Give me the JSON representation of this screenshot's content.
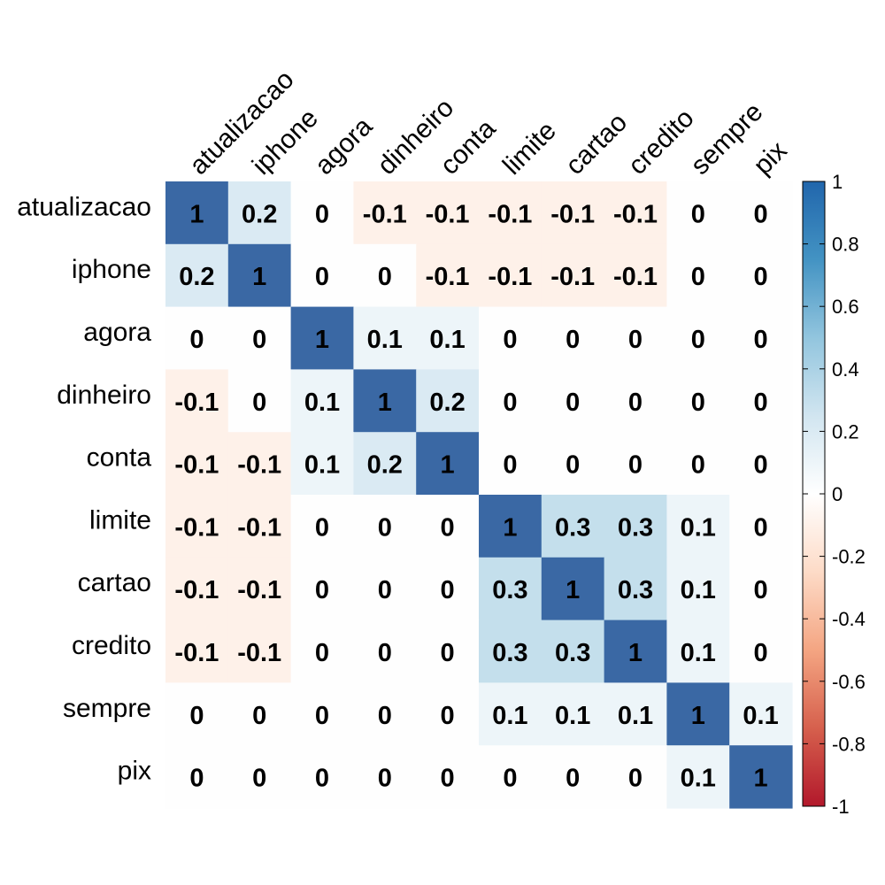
{
  "chart_data": {
    "type": "heatmap",
    "title": "",
    "xlabel": "",
    "ylabel": "",
    "variables": [
      "atualizacao",
      "iphone",
      "agora",
      "dinheiro",
      "conta",
      "limite",
      "cartao",
      "credito",
      "sempre",
      "pix"
    ],
    "matrix": [
      [
        1,
        0.2,
        0,
        -0.1,
        -0.1,
        -0.1,
        -0.1,
        -0.1,
        0,
        0
      ],
      [
        0.2,
        1,
        0,
        0,
        -0.1,
        -0.1,
        -0.1,
        -0.1,
        0,
        0
      ],
      [
        0,
        0,
        1,
        0.1,
        0.1,
        0,
        0,
        0,
        0,
        0
      ],
      [
        -0.1,
        0,
        0.1,
        1,
        0.2,
        0,
        0,
        0,
        0,
        0
      ],
      [
        -0.1,
        -0.1,
        0.1,
        0.2,
        1,
        0,
        0,
        0,
        0,
        0
      ],
      [
        -0.1,
        -0.1,
        0,
        0,
        0,
        1,
        0.3,
        0.3,
        0.1,
        0
      ],
      [
        -0.1,
        -0.1,
        0,
        0,
        0,
        0.3,
        1,
        0.3,
        0.1,
        0
      ],
      [
        -0.1,
        -0.1,
        0,
        0,
        0,
        0.3,
        0.3,
        1,
        0.1,
        0
      ],
      [
        0,
        0,
        0,
        0,
        0,
        0.1,
        0.1,
        0.1,
        1,
        0.1
      ],
      [
        0,
        0,
        0,
        0,
        0,
        0,
        0,
        0,
        0.1,
        1
      ]
    ],
    "colorbar": {
      "min": -1,
      "max": 1,
      "ticks": [
        1,
        0.8,
        0.6,
        0.4,
        0.2,
        0,
        -0.2,
        -0.4,
        -0.6,
        -0.8,
        -1
      ],
      "tick_labels": [
        "1",
        "0.8",
        "0.6",
        "0.4",
        "0.2",
        "0",
        "-0.2",
        "-0.4",
        "-0.6",
        "-0.8",
        "-1"
      ],
      "placement": "right"
    },
    "colors": {
      "negative_end": "#B2182B",
      "low_negative": "#F4A582",
      "light_negative": "#FDDBC7",
      "neutral": "#FFFFFF",
      "light_positive": "#D1E5F0",
      "mid_positive": "#92C5DE",
      "high_positive": "#4393C3",
      "positive_end": "#2166AC"
    },
    "grid": false
  }
}
